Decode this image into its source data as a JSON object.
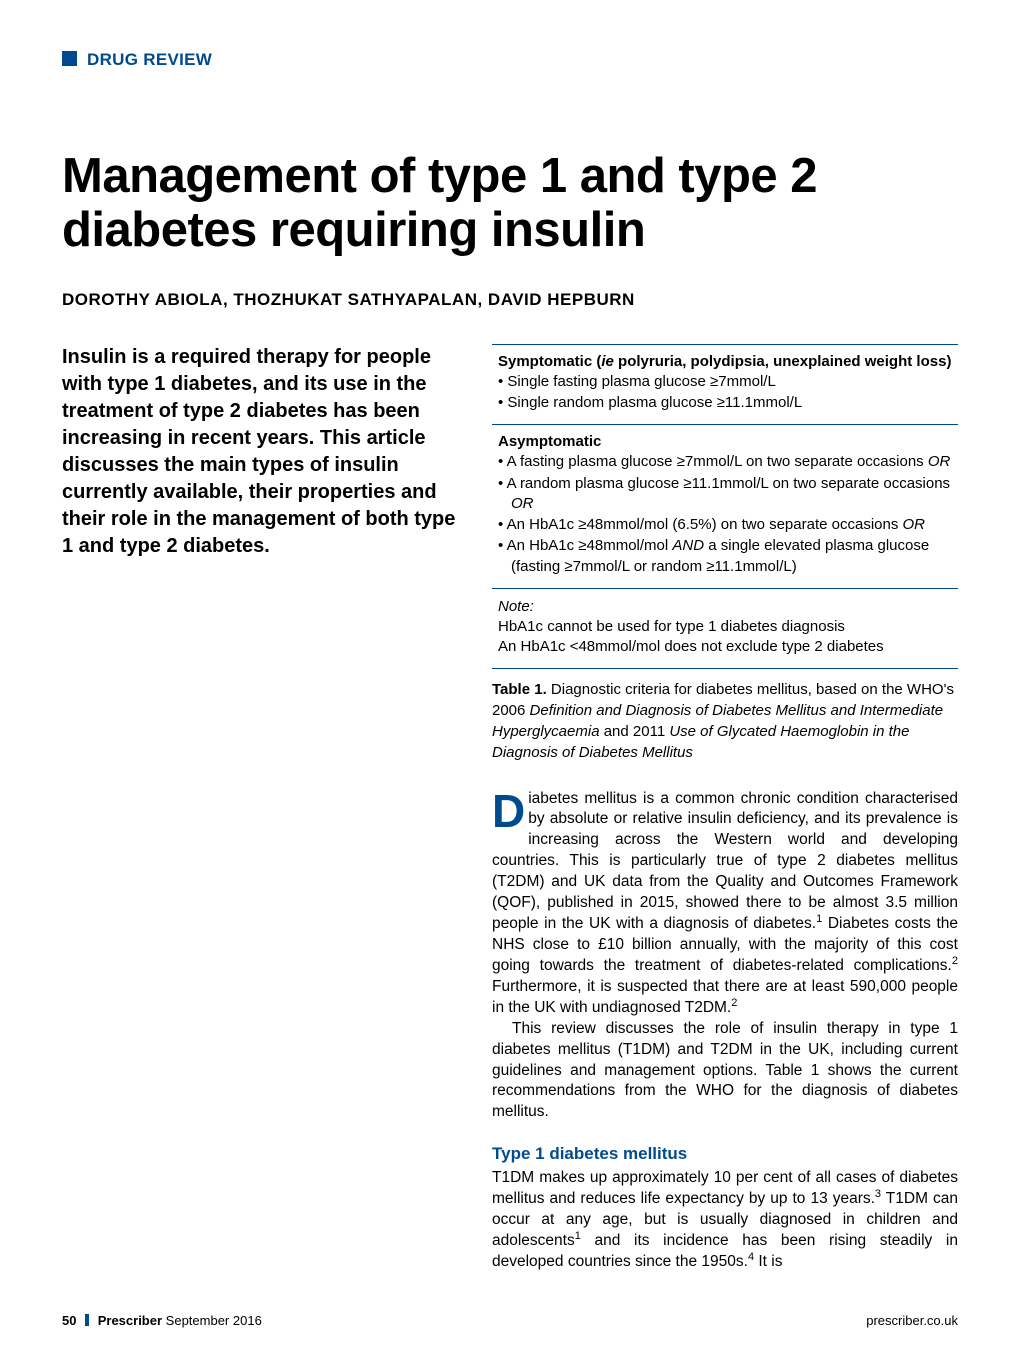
{
  "section_label": "DRUG REVIEW",
  "title": "Management of type 1 and type 2 diabetes requiring insulin",
  "authors": "DOROTHY ABIOLA, THOZHUKAT SATHYAPALAN, DAVID HEPBURN",
  "standfirst": "Insulin is a required therapy for people with type 1 diabetes, and its use in the treatment of type 2 diabetes has been increasing in recent years. This article discusses the main types of insulin currently available, their properties and their role in the management of both type 1 and type 2 diabetes.",
  "table1": {
    "symptomatic": {
      "heading_prefix": "Symptomatic (",
      "heading_italic": "ie",
      "heading_suffix": " polyruria, polydipsia, unexplained weight loss)",
      "items": [
        "Single fasting plasma glucose ≥7mmol/L",
        "Single random plasma glucose ≥11.1mmol/L"
      ]
    },
    "asymptomatic": {
      "heading": "Asymptomatic",
      "items_html": [
        "A fasting plasma glucose ≥7mmol/L on two separate occasions <span class=\"italic\">OR</span>",
        "A random plasma glucose ≥11.1mmol/L on two separate occasions <span class=\"italic\">OR</span>",
        "An HbA1c ≥48mmol/mol (6.5%) on two separate occasions <span class=\"italic\">OR</span>",
        "An HbA1c ≥48mmol/mol <span class=\"italic\">AND</span> a single elevated plasma glucose (fasting ≥7mmol/L or random ≥11.1mmol/L)"
      ]
    },
    "note": {
      "label": "Note:",
      "line1": "HbA1c cannot be used for type 1 diabetes diagnosis",
      "line2": "An HbA1c <48mmol/mol does not exclude type 2 diabetes"
    },
    "caption_bold": "Table 1.",
    "caption_rest": " Diagnostic criteria for diabetes mellitus, based on the WHO's 2006 ",
    "caption_italic1": "Definition and Diagnosis of Diabetes Mellitus and Intermediate Hyperglycaemia",
    "caption_mid": " and 2011 ",
    "caption_italic2": "Use of Glycated Haemoglobin in the Diagnosis of Diabetes Mellitus"
  },
  "body": {
    "dropcap": "D",
    "para1": "iabetes mellitus is a common chronic condition characterised by absolute or relative insulin deficiency, and its prevalence is increasing across the Western world and developing countries. This is particularly true of type 2 diabetes mellitus (T2DM) and UK data from the Quality and Outcomes Framework (QOF), published in 2015, showed there to be almost 3.5 million people in the UK with a diagnosis of diabetes.",
    "para1_after_ref1": " Diabetes costs the NHS close to £10 billion annually, with the majority of this cost going towards the treatment of diabetes-related complications.",
    "para1_after_ref2": " Furthermore, it is suspected that there are at least 590,000 people in the UK with undiagnosed T2DM.",
    "para2": "This review discusses the role of insulin therapy in type 1 diabetes mellitus (T1DM) and T2DM in the UK, including current guidelines and management options. Table 1 shows the current recommendations from the WHO for the diagnosis of diabetes mellitus.",
    "subhead1": "Type 1 diabetes mellitus",
    "para3a": "T1DM makes up approximately 10 per cent of all cases of diabetes mellitus and reduces life expectancy by up to 13 years.",
    "para3b": " T1DM can occur at any age, but is usually diagnosed in children and adolescents",
    "para3c": " and its incidence has been rising steadily in developed countries since the 1950s.",
    "para3d": " It is"
  },
  "refs": {
    "r1": "1",
    "r2": "2",
    "r3": "3",
    "r4": "4"
  },
  "footer": {
    "page_number": "50",
    "journal": "Prescriber",
    "issue": "September 2016",
    "url": "prescriber.co.uk"
  },
  "colors": {
    "brand": "#004b8d",
    "text": "#000000",
    "background": "#ffffff"
  }
}
